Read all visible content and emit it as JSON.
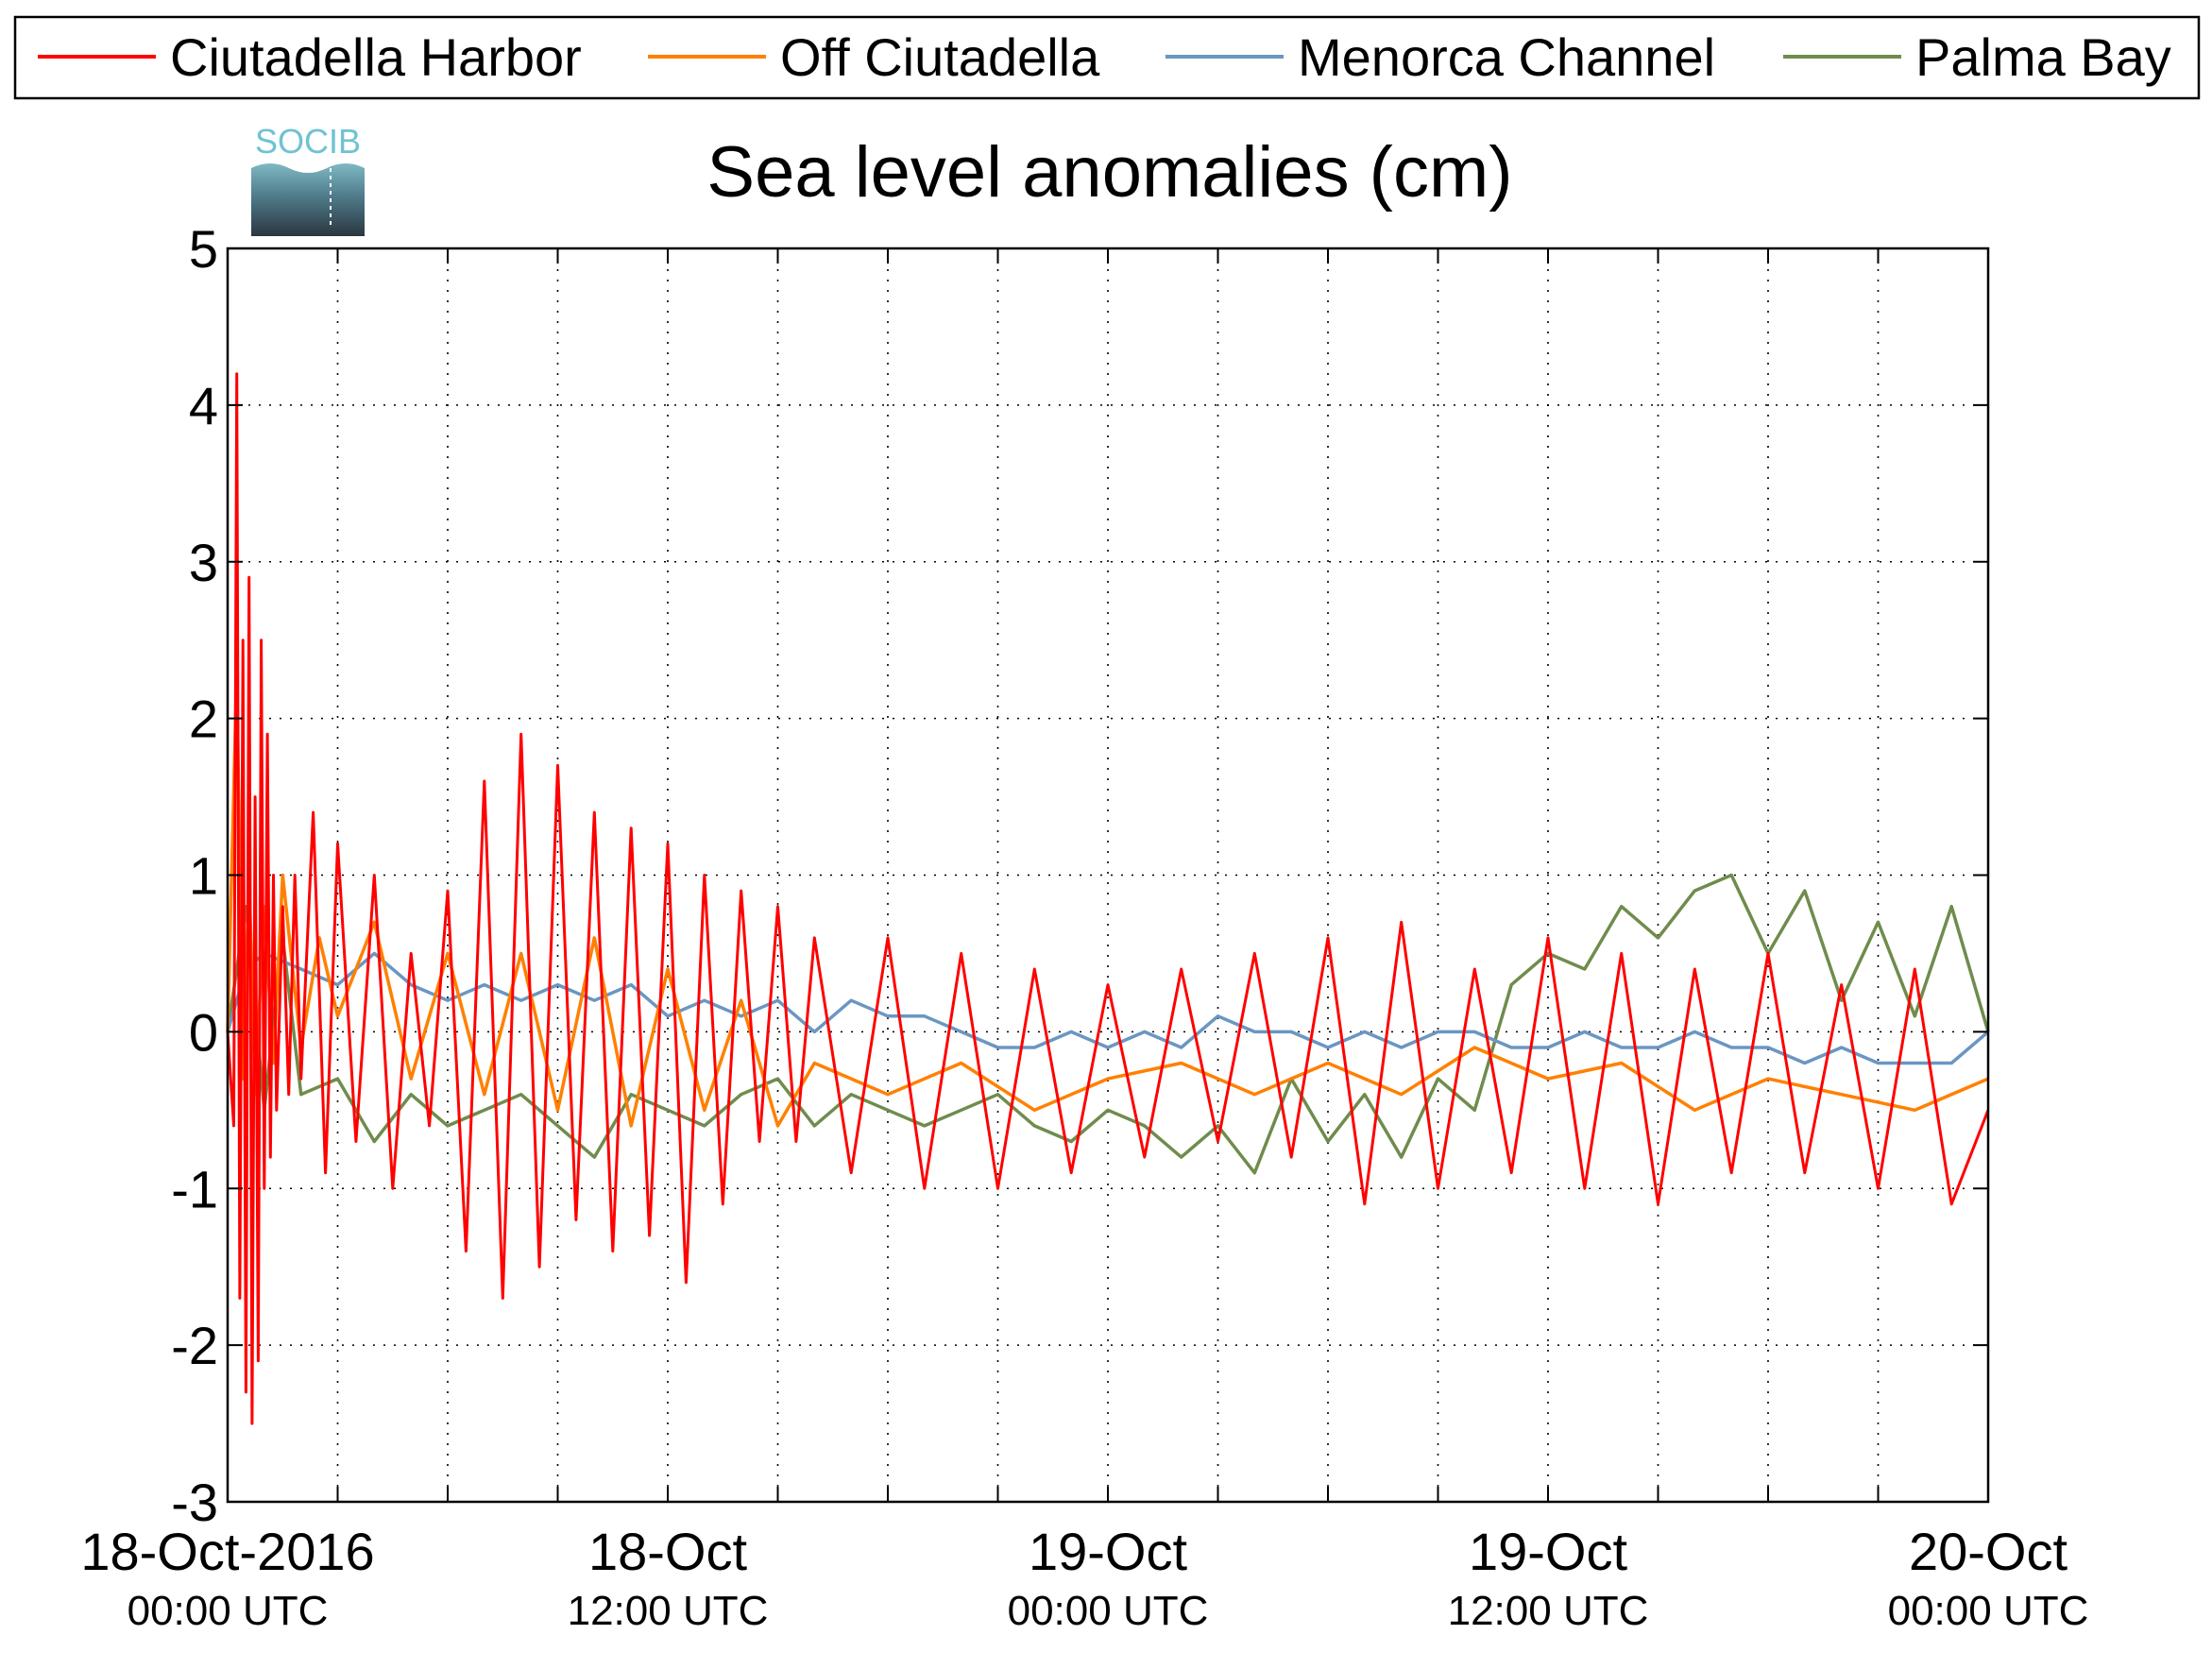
{
  "logo": {
    "text": "SOCIB"
  },
  "legend": {
    "placement": "top",
    "entries": [
      {
        "label": "Ciutadella Harbor",
        "color": "#ff0000"
      },
      {
        "label": "Off Ciutadella",
        "color": "#ff8000"
      },
      {
        "label": "Menorca Channel",
        "color": "#6a96c2"
      },
      {
        "label": "Palma Bay",
        "color": "#6f8c4c"
      }
    ]
  },
  "chart_data": {
    "type": "line",
    "title": "Sea level anomalies (cm)",
    "xlabel": "",
    "ylabel": "",
    "ylim": [
      -3,
      5
    ],
    "yticks": [
      -3,
      -2,
      -1,
      0,
      1,
      2,
      3,
      4,
      5
    ],
    "xlim": [
      "2016-10-18 00:00",
      "2016-10-20 00:00"
    ],
    "x_major_ticks": [
      {
        "date": "2016-10-18 00:00",
        "line1": "18-Oct-2016",
        "line2": "00:00 UTC"
      },
      {
        "date": "2016-10-18 12:00",
        "line1": "18-Oct",
        "line2": "12:00 UTC"
      },
      {
        "date": "2016-10-19 00:00",
        "line1": "19-Oct",
        "line2": "00:00 UTC"
      },
      {
        "date": "2016-10-19 12:00",
        "line1": "19-Oct",
        "line2": "12:00 UTC"
      },
      {
        "date": "2016-10-20 00:00",
        "line1": "20-Oct",
        "line2": "00:00 UTC"
      }
    ],
    "x_grid_hours": [
      3,
      6,
      9,
      12,
      15,
      18,
      21,
      24,
      27,
      30,
      33,
      36,
      39,
      42,
      45
    ],
    "grid": true,
    "series": [
      {
        "name": "Ciutadella Harbor",
        "x": [
          "2016-10-18 00:00",
          "2016-10-18 00:10",
          "2016-10-18 00:15",
          "2016-10-18 00:20",
          "2016-10-18 00:25",
          "2016-10-18 00:30",
          "2016-10-18 00:35",
          "2016-10-18 00:40",
          "2016-10-18 00:45",
          "2016-10-18 00:50",
          "2016-10-18 00:55",
          "2016-10-18 01:00",
          "2016-10-18 01:05",
          "2016-10-18 01:10",
          "2016-10-18 01:15",
          "2016-10-18 01:20",
          "2016-10-18 01:30",
          "2016-10-18 01:40",
          "2016-10-18 01:50",
          "2016-10-18 02:00",
          "2016-10-18 02:20",
          "2016-10-18 02:40",
          "2016-10-18 03:00",
          "2016-10-18 03:30",
          "2016-10-18 04:00",
          "2016-10-18 04:30",
          "2016-10-18 05:00",
          "2016-10-18 05:30",
          "2016-10-18 06:00",
          "2016-10-18 06:30",
          "2016-10-18 07:00",
          "2016-10-18 07:30",
          "2016-10-18 08:00",
          "2016-10-18 08:30",
          "2016-10-18 09:00",
          "2016-10-18 09:30",
          "2016-10-18 10:00",
          "2016-10-18 10:30",
          "2016-10-18 11:00",
          "2016-10-18 11:30",
          "2016-10-18 12:00",
          "2016-10-18 12:30",
          "2016-10-18 13:00",
          "2016-10-18 13:30",
          "2016-10-18 14:00",
          "2016-10-18 14:30",
          "2016-10-18 15:00",
          "2016-10-18 15:30",
          "2016-10-18 16:00",
          "2016-10-18 17:00",
          "2016-10-18 18:00",
          "2016-10-18 19:00",
          "2016-10-18 20:00",
          "2016-10-18 21:00",
          "2016-10-18 22:00",
          "2016-10-18 23:00",
          "2016-10-19 00:00",
          "2016-10-19 01:00",
          "2016-10-19 02:00",
          "2016-10-19 03:00",
          "2016-10-19 04:00",
          "2016-10-19 05:00",
          "2016-10-19 06:00",
          "2016-10-19 07:00",
          "2016-10-19 08:00",
          "2016-10-19 09:00",
          "2016-10-19 10:00",
          "2016-10-19 11:00",
          "2016-10-19 12:00",
          "2016-10-19 13:00",
          "2016-10-19 14:00",
          "2016-10-19 15:00",
          "2016-10-19 16:00",
          "2016-10-19 17:00",
          "2016-10-19 18:00",
          "2016-10-19 19:00",
          "2016-10-19 20:00",
          "2016-10-19 21:00",
          "2016-10-19 22:00",
          "2016-10-19 23:00",
          "2016-10-20 00:00"
        ],
        "y": [
          0.0,
          -0.6,
          4.2,
          -1.7,
          2.5,
          -2.3,
          2.9,
          -2.5,
          1.5,
          -2.1,
          2.5,
          -1.0,
          1.9,
          -0.8,
          1.0,
          -0.5,
          0.8,
          -0.4,
          1.0,
          -0.3,
          1.4,
          -0.9,
          1.2,
          -0.7,
          1.0,
          -1.0,
          0.5,
          -0.6,
          0.9,
          -1.4,
          1.6,
          -1.7,
          1.9,
          -1.5,
          1.7,
          -1.2,
          1.4,
          -1.4,
          1.3,
          -1.3,
          1.2,
          -1.6,
          1.0,
          -1.1,
          0.9,
          -0.7,
          0.8,
          -0.7,
          0.6,
          -0.9,
          0.6,
          -1.0,
          0.5,
          -1.0,
          0.4,
          -0.9,
          0.3,
          -0.8,
          0.4,
          -0.7,
          0.5,
          -0.8,
          0.6,
          -1.1,
          0.7,
          -1.0,
          0.4,
          -0.9,
          0.6,
          -1.0,
          0.5,
          -1.1,
          0.4,
          -0.9,
          0.5,
          -0.9,
          0.3,
          -1.0,
          0.4,
          -1.1,
          -0.5
        ]
      },
      {
        "name": "Off Ciutadella",
        "x": [
          "2016-10-18 00:00",
          "2016-10-18 00:15",
          "2016-10-18 00:25",
          "2016-10-18 00:35",
          "2016-10-18 00:45",
          "2016-10-18 01:00",
          "2016-10-18 01:15",
          "2016-10-18 01:30",
          "2016-10-18 02:00",
          "2016-10-18 02:30",
          "2016-10-18 03:00",
          "2016-10-18 04:00",
          "2016-10-18 05:00",
          "2016-10-18 06:00",
          "2016-10-18 07:00",
          "2016-10-18 08:00",
          "2016-10-18 09:00",
          "2016-10-18 10:00",
          "2016-10-18 11:00",
          "2016-10-18 12:00",
          "2016-10-18 13:00",
          "2016-10-18 14:00",
          "2016-10-18 15:00",
          "2016-10-18 16:00",
          "2016-10-18 18:00",
          "2016-10-18 20:00",
          "2016-10-18 22:00",
          "2016-10-19 00:00",
          "2016-10-19 02:00",
          "2016-10-19 04:00",
          "2016-10-19 06:00",
          "2016-10-19 08:00",
          "2016-10-19 10:00",
          "2016-10-19 12:00",
          "2016-10-19 14:00",
          "2016-10-19 16:00",
          "2016-10-19 18:00",
          "2016-10-19 20:00",
          "2016-10-19 22:00",
          "2016-10-20 00:00"
        ],
        "y": [
          0.0,
          2.3,
          -0.3,
          1.0,
          -0.4,
          0.8,
          -0.2,
          1.0,
          -0.1,
          0.6,
          0.1,
          0.7,
          -0.3,
          0.5,
          -0.4,
          0.5,
          -0.5,
          0.6,
          -0.6,
          0.4,
          -0.5,
          0.2,
          -0.6,
          -0.2,
          -0.4,
          -0.2,
          -0.5,
          -0.3,
          -0.2,
          -0.4,
          -0.2,
          -0.4,
          -0.1,
          -0.3,
          -0.2,
          -0.5,
          -0.3,
          -0.4,
          -0.5,
          -0.3
        ]
      },
      {
        "name": "Menorca Channel",
        "x": [
          "2016-10-18 00:00",
          "2016-10-18 00:30",
          "2016-10-18 01:00",
          "2016-10-18 02:00",
          "2016-10-18 03:00",
          "2016-10-18 04:00",
          "2016-10-18 05:00",
          "2016-10-18 06:00",
          "2016-10-18 07:00",
          "2016-10-18 08:00",
          "2016-10-18 09:00",
          "2016-10-18 10:00",
          "2016-10-18 11:00",
          "2016-10-18 12:00",
          "2016-10-18 13:00",
          "2016-10-18 14:00",
          "2016-10-18 15:00",
          "2016-10-18 16:00",
          "2016-10-18 17:00",
          "2016-10-18 18:00",
          "2016-10-18 19:00",
          "2016-10-18 20:00",
          "2016-10-18 21:00",
          "2016-10-18 22:00",
          "2016-10-18 23:00",
          "2016-10-19 00:00",
          "2016-10-19 01:00",
          "2016-10-19 02:00",
          "2016-10-19 03:00",
          "2016-10-19 04:00",
          "2016-10-19 05:00",
          "2016-10-19 06:00",
          "2016-10-19 07:00",
          "2016-10-19 08:00",
          "2016-10-19 09:00",
          "2016-10-19 10:00",
          "2016-10-19 11:00",
          "2016-10-19 12:00",
          "2016-10-19 13:00",
          "2016-10-19 14:00",
          "2016-10-19 15:00",
          "2016-10-19 16:00",
          "2016-10-19 17:00",
          "2016-10-19 18:00",
          "2016-10-19 19:00",
          "2016-10-19 20:00",
          "2016-10-19 21:00",
          "2016-10-19 22:00",
          "2016-10-19 23:00",
          "2016-10-20 00:00"
        ],
        "y": [
          0.0,
          0.4,
          0.5,
          0.4,
          0.3,
          0.5,
          0.3,
          0.2,
          0.3,
          0.2,
          0.3,
          0.2,
          0.3,
          0.1,
          0.2,
          0.1,
          0.2,
          0.0,
          0.2,
          0.1,
          0.1,
          0.0,
          -0.1,
          -0.1,
          0.0,
          -0.1,
          0.0,
          -0.1,
          0.1,
          0.0,
          0.0,
          -0.1,
          0.0,
          -0.1,
          0.0,
          0.0,
          -0.1,
          -0.1,
          0.0,
          -0.1,
          -0.1,
          0.0,
          -0.1,
          -0.1,
          -0.2,
          -0.1,
          -0.2,
          -0.2,
          -0.2,
          0.0
        ]
      },
      {
        "name": "Palma Bay",
        "x": [
          "2016-10-18 00:00",
          "2016-10-18 00:30",
          "2016-10-18 01:00",
          "2016-10-18 01:30",
          "2016-10-18 02:00",
          "2016-10-18 03:00",
          "2016-10-18 04:00",
          "2016-10-18 05:00",
          "2016-10-18 06:00",
          "2016-10-18 07:00",
          "2016-10-18 08:00",
          "2016-10-18 09:00",
          "2016-10-18 10:00",
          "2016-10-18 11:00",
          "2016-10-18 12:00",
          "2016-10-18 13:00",
          "2016-10-18 14:00",
          "2016-10-18 15:00",
          "2016-10-18 16:00",
          "2016-10-18 17:00",
          "2016-10-18 18:00",
          "2016-10-18 19:00",
          "2016-10-18 20:00",
          "2016-10-18 21:00",
          "2016-10-18 22:00",
          "2016-10-18 23:00",
          "2016-10-19 00:00",
          "2016-10-19 01:00",
          "2016-10-19 02:00",
          "2016-10-19 03:00",
          "2016-10-19 04:00",
          "2016-10-19 05:00",
          "2016-10-19 06:00",
          "2016-10-19 07:00",
          "2016-10-19 08:00",
          "2016-10-19 09:00",
          "2016-10-19 10:00",
          "2016-10-19 11:00",
          "2016-10-19 12:00",
          "2016-10-19 13:00",
          "2016-10-19 14:00",
          "2016-10-19 15:00",
          "2016-10-19 16:00",
          "2016-10-19 17:00",
          "2016-10-19 18:00",
          "2016-10-19 19:00",
          "2016-10-19 20:00",
          "2016-10-19 21:00",
          "2016-10-19 22:00",
          "2016-10-19 23:00",
          "2016-10-20 00:00"
        ],
        "y": [
          0.0,
          0.8,
          -0.5,
          0.6,
          -0.4,
          -0.3,
          -0.7,
          -0.4,
          -0.6,
          -0.5,
          -0.4,
          -0.6,
          -0.8,
          -0.4,
          -0.5,
          -0.6,
          -0.4,
          -0.3,
          -0.6,
          -0.4,
          -0.5,
          -0.6,
          -0.5,
          -0.4,
          -0.6,
          -0.7,
          -0.5,
          -0.6,
          -0.8,
          -0.6,
          -0.9,
          -0.3,
          -0.7,
          -0.4,
          -0.8,
          -0.3,
          -0.5,
          0.3,
          0.5,
          0.4,
          0.8,
          0.6,
          0.9,
          1.0,
          0.5,
          0.9,
          0.2,
          0.7,
          0.1,
          0.8,
          0.0
        ]
      }
    ]
  }
}
